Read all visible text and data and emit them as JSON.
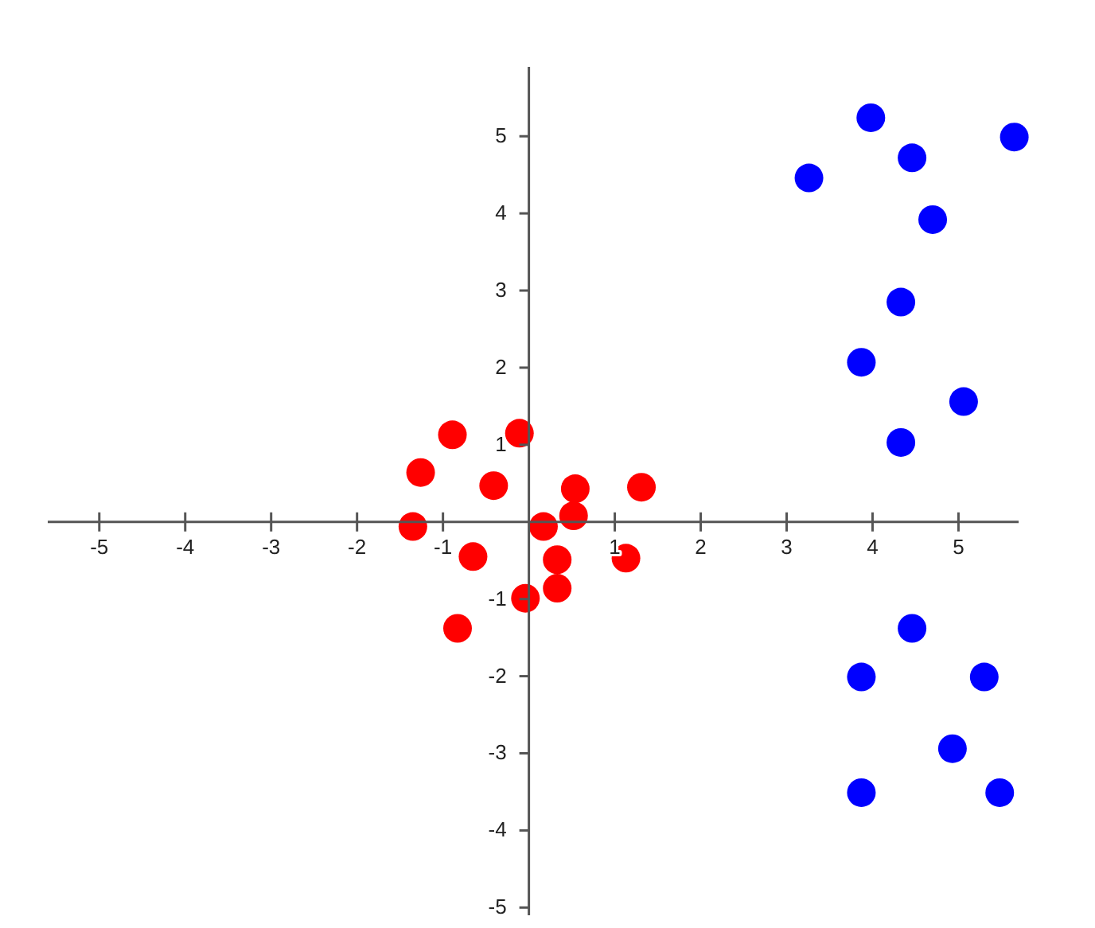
{
  "chart_data": {
    "type": "scatter",
    "xlim": [
      -5.6,
      5.7
    ],
    "ylim": [
      -5.1,
      5.9
    ],
    "xticks": [
      -5,
      -4,
      -3,
      -2,
      -1,
      1,
      2,
      3,
      4,
      5
    ],
    "yticks": [
      -5,
      -4,
      -3,
      -2,
      -1,
      1,
      2,
      3,
      4,
      5
    ],
    "grid": false,
    "marker": "circle",
    "series": [
      {
        "color": "#ff0000",
        "x": [
          -0.11,
          -0.89,
          -1.26,
          -0.41,
          -1.35,
          -0.65,
          -0.83,
          -0.04,
          0.17,
          0.33,
          0.33,
          0.52,
          0.54,
          1.13,
          1.31
        ],
        "values": [
          1.15,
          1.13,
          0.64,
          0.47,
          -0.06,
          -0.45,
          -1.38,
          -0.99,
          -0.06,
          -0.49,
          -0.86,
          0.08,
          0.43,
          -0.47,
          0.45
        ]
      },
      {
        "color": "#0000ff",
        "x": [
          3.98,
          4.46,
          5.65,
          3.26,
          4.7,
          4.33,
          3.87,
          5.06,
          4.33,
          4.46,
          3.87,
          5.3,
          4.93,
          3.87,
          5.48
        ],
        "values": [
          5.24,
          4.72,
          4.99,
          4.46,
          3.92,
          2.85,
          2.07,
          1.56,
          1.03,
          -1.38,
          -2.01,
          -2.01,
          -2.94,
          -3.51,
          -3.51
        ]
      }
    ]
  }
}
